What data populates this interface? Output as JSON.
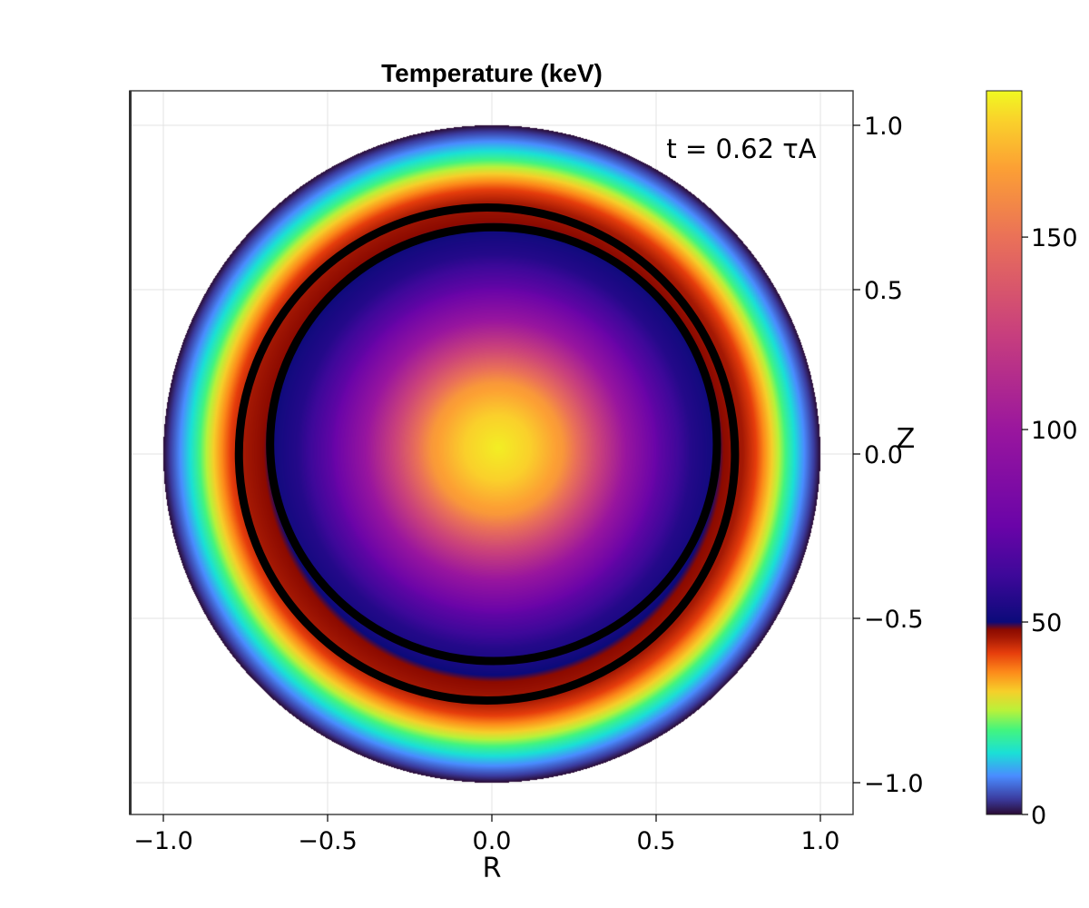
{
  "chart_data": {
    "type": "heatmap",
    "title": "Temperature (keV)",
    "xlabel": "R",
    "ylabel": "Z",
    "annotation": "t = 0.62 τA",
    "xlim": [
      -1.1,
      1.1
    ],
    "ylim": [
      -1.1,
      1.1
    ],
    "x_ticks": [
      -1.0,
      -0.5,
      0.0,
      0.5,
      1.0
    ],
    "x_tick_labels": [
      "−1.0",
      "−0.5",
      "0.0",
      "0.5",
      "1.0"
    ],
    "y_ticks": [
      1.0,
      0.5,
      0.0,
      -0.5,
      -1.0
    ],
    "y_tick_labels": [
      "1.0",
      "0.5",
      "0.0",
      "−0.5",
      "−1.0"
    ],
    "y_axis_side": "right",
    "grid": true,
    "domain": {
      "shape": "circle",
      "center_r": 0.0,
      "center_z": 0.0,
      "radius": 1.0
    },
    "colorbar": {
      "range": [
        0,
        188
      ],
      "ticks": [
        0,
        50,
        100,
        150
      ],
      "tick_labels": [
        "0",
        "50",
        "100",
        "150"
      ],
      "colormap": [
        [
          0,
          "#2a0a33"
        ],
        [
          4,
          "#3b3b9e"
        ],
        [
          10,
          "#4a8cff"
        ],
        [
          16,
          "#1ae0d6"
        ],
        [
          22,
          "#43f57e"
        ],
        [
          27,
          "#b8f23a"
        ],
        [
          32,
          "#f6cf2a"
        ],
        [
          37,
          "#fd8a1a"
        ],
        [
          42,
          "#e63d0c"
        ],
        [
          46,
          "#a41904"
        ],
        [
          48,
          "#8c0a00"
        ],
        [
          50,
          "#0c0a7a"
        ],
        [
          62,
          "#3d0899"
        ],
        [
          75,
          "#6a04a8"
        ],
        [
          100,
          "#9a169e"
        ],
        [
          125,
          "#c83f7d"
        ],
        [
          150,
          "#ea7158"
        ],
        [
          168,
          "#fca034"
        ],
        [
          180,
          "#fad02b"
        ],
        [
          188,
          "#f0f921"
        ]
      ]
    },
    "profile": {
      "description_free": true,
      "radial_T": [
        [
          0.0,
          186
        ],
        [
          0.1,
          180
        ],
        [
          0.2,
          165
        ],
        [
          0.3,
          130
        ],
        [
          0.4,
          98
        ],
        [
          0.5,
          72
        ],
        [
          0.6,
          56
        ],
        [
          0.66,
          52
        ],
        [
          0.7,
          48
        ],
        [
          0.76,
          46
        ],
        [
          0.8,
          42
        ],
        [
          0.85,
          32
        ],
        [
          0.9,
          20
        ],
        [
          0.94,
          12
        ],
        [
          0.97,
          6
        ],
        [
          1.0,
          0
        ]
      ],
      "core_center": [
        0.02,
        0.02
      ]
    },
    "contours": [
      {
        "level": 52,
        "center_r": 0.005,
        "center_z": 0.03,
        "radius_r": 0.68,
        "radius_z": 0.66,
        "color": "#000000"
      },
      {
        "level": 48,
        "center_r": -0.015,
        "center_z": 0.0,
        "radius_r": 0.755,
        "radius_z": 0.75,
        "color": "#000000"
      }
    ]
  }
}
